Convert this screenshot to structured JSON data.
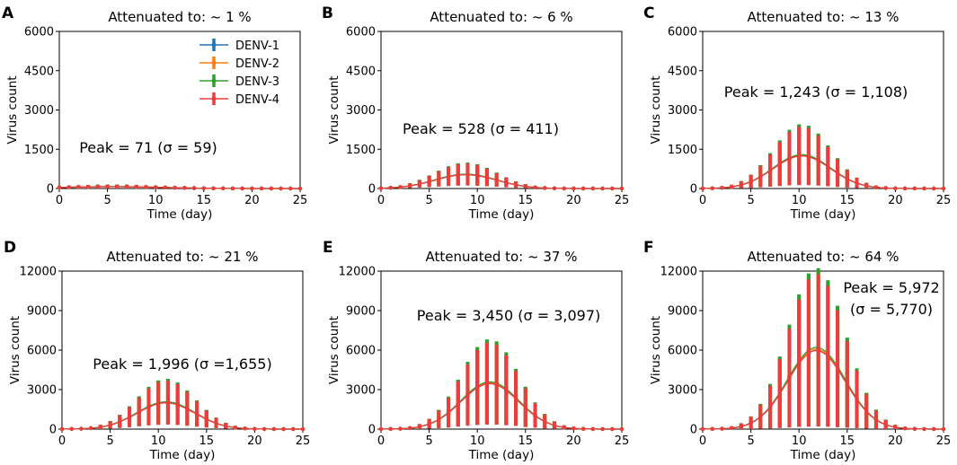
{
  "colors": {
    "DENV-1": "#1f77b4",
    "DENV-2": "#ff7f0e",
    "DENV-3": "#2ca02c",
    "DENV-4": "#ee3b3b"
  },
  "legend": [
    "DENV-1",
    "DENV-2",
    "DENV-3",
    "DENV-4"
  ],
  "chart_data": [
    {
      "panel": "A",
      "type": "line_errorbar",
      "title": "Attenuated to: ~ 1 %",
      "xlabel": "Time (day)",
      "ylabel": "Virus count",
      "xlim": [
        0,
        25
      ],
      "ylim": [
        0,
        6000
      ],
      "xticks": [
        0,
        5,
        10,
        15,
        20,
        25
      ],
      "yticks": [
        0,
        1500,
        3000,
        4500,
        6000
      ],
      "peak_label": "Peak = 71 (σ = 59)",
      "peak": 71,
      "sigma": 59,
      "peak_day": 5.5,
      "curve_sd": 5.0,
      "show_legend": true
    },
    {
      "panel": "B",
      "type": "line_errorbar",
      "title": "Attenuated to: ~ 6 %",
      "xlabel": "Time (day)",
      "ylabel": "Virus count",
      "xlim": [
        0,
        25
      ],
      "ylim": [
        0,
        6000
      ],
      "xticks": [
        0,
        5,
        10,
        15,
        20,
        25
      ],
      "yticks": [
        0,
        1500,
        3000,
        4500,
        6000
      ],
      "peak_label": "Peak = 528 (σ = 411)",
      "peak": 528,
      "sigma": 411,
      "peak_day": 8.8,
      "curve_sd": 3.2,
      "show_legend": false
    },
    {
      "panel": "C",
      "type": "line_errorbar",
      "title": "Attenuated to: ~ 13 %",
      "xlabel": "Time (day)",
      "ylabel": "Virus count",
      "xlim": [
        0,
        25
      ],
      "ylim": [
        0,
        6000
      ],
      "xticks": [
        0,
        5,
        10,
        15,
        20,
        25
      ],
      "yticks": [
        0,
        1500,
        3000,
        4500,
        6000
      ],
      "peak_label": "Peak = 1,243 (σ = 1,108)",
      "peak": 1243,
      "sigma": 1108,
      "peak_day": 10.3,
      "curve_sd": 3.0,
      "show_legend": false
    },
    {
      "panel": "D",
      "type": "line_errorbar",
      "title": "Attenuated to: ~ 21 %",
      "xlabel": "Time (day)",
      "ylabel": "Virus count",
      "xlim": [
        0,
        25
      ],
      "ylim": [
        0,
        12000
      ],
      "xticks": [
        0,
        5,
        10,
        15,
        20,
        25
      ],
      "yticks": [
        0,
        3000,
        6000,
        9000,
        12000
      ],
      "peak_label": "Peak = 1,996 (σ =1,655)",
      "peak": 1996,
      "sigma": 1655,
      "peak_day": 10.8,
      "curve_sd": 3.0,
      "show_legend": false
    },
    {
      "panel": "E",
      "type": "line_errorbar",
      "title": "Attenuated to: ~ 37 %",
      "xlabel": "Time (day)",
      "ylabel": "Virus count",
      "xlim": [
        0,
        25
      ],
      "ylim": [
        0,
        12000
      ],
      "xticks": [
        0,
        5,
        10,
        15,
        20,
        25
      ],
      "yticks": [
        0,
        3000,
        6000,
        9000,
        12000
      ],
      "peak_label": "Peak = 3,450 (σ = 3,097)",
      "peak": 3450,
      "sigma": 3097,
      "peak_day": 11.3,
      "curve_sd": 3.0,
      "show_legend": false
    },
    {
      "panel": "F",
      "type": "line_errorbar",
      "title": "Attenuated to: ~ 64 %",
      "xlabel": "Time (day)",
      "ylabel": "Virus count",
      "xlim": [
        0,
        25
      ],
      "ylim": [
        0,
        12000
      ],
      "xticks": [
        0,
        5,
        10,
        15,
        20,
        25
      ],
      "yticks": [
        0,
        3000,
        6000,
        9000,
        12000
      ],
      "peak_label": "Peak = 5,972",
      "peak_label_2": "(σ = 5,770)",
      "peak": 5972,
      "sigma": 5770,
      "peak_day": 11.8,
      "curve_sd": 3.0,
      "show_legend": false
    }
  ]
}
